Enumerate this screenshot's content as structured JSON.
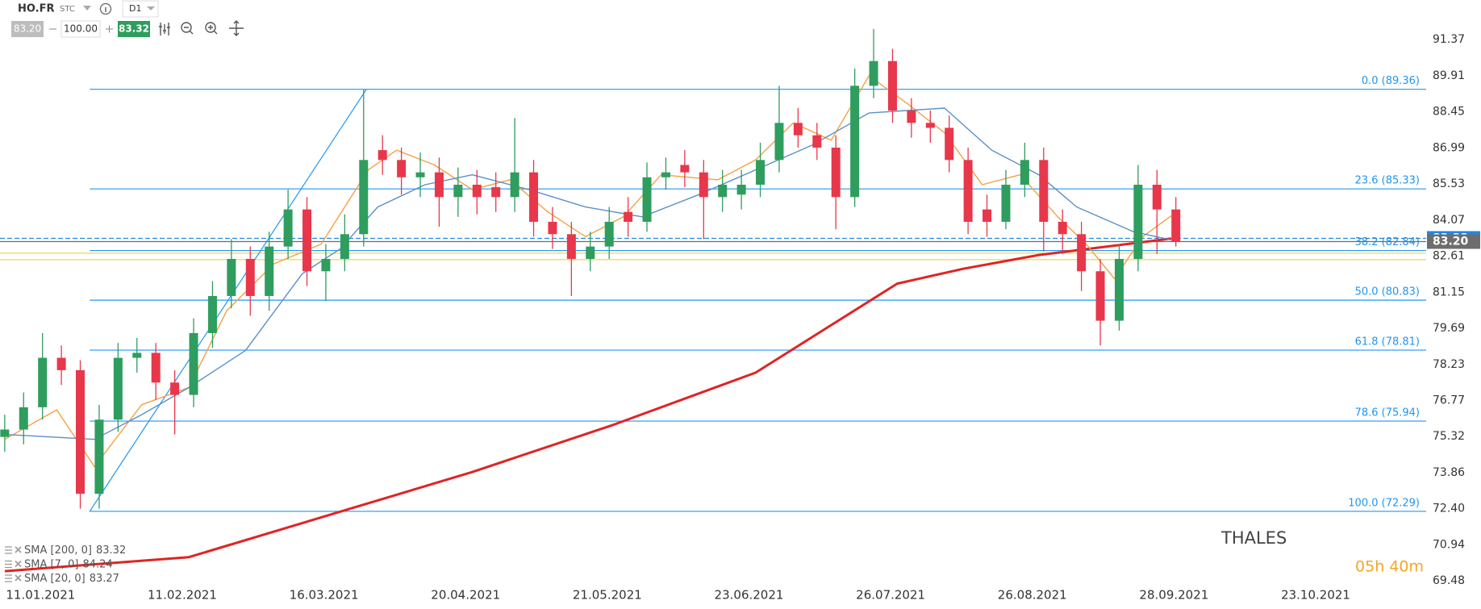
{
  "toolbar": {
    "symbol": "HO.FR",
    "market": "STC",
    "interval": "D1",
    "sell": "83.20",
    "quantity": "100.00",
    "buy": "83.32"
  },
  "chart_data": {
    "type": "candlestick",
    "title": "THALES",
    "countdown": "05h 40m",
    "xlim": [
      -0.25,
      75.25
    ],
    "ylim": [
      69.32,
      92.97
    ],
    "xticks": [
      {
        "value": 1.9,
        "label": "11.01.2021"
      },
      {
        "value": 9.4,
        "label": "11.02.2021"
      },
      {
        "value": 16.9,
        "label": "16.03.2021"
      },
      {
        "value": 24.4,
        "label": "20.04.2021"
      },
      {
        "value": 31.9,
        "label": "21.05.2021"
      },
      {
        "value": 39.4,
        "label": "23.06.2021"
      },
      {
        "value": 46.9,
        "label": "26.07.2021"
      },
      {
        "value": 54.4,
        "label": "26.08.2021"
      },
      {
        "value": 61.9,
        "label": "28.09.2021"
      },
      {
        "value": 69.4,
        "label": "23.10.2021"
      }
    ],
    "yticks": [
      91.37,
      89.91,
      88.45,
      86.99,
      85.53,
      84.07,
      82.61,
      81.15,
      79.69,
      78.23,
      76.77,
      75.32,
      73.86,
      {
        "value": 72.4,
        "label": "72.40"
      },
      70.94,
      69.48
    ],
    "up_color": "#2e9d5e",
    "down_color": "#e8374a",
    "open": [
      75.3,
      75.6,
      76.5,
      78.5,
      78,
      73,
      76,
      78.5,
      78.7,
      77.5,
      77,
      79.5,
      81,
      82.5,
      81,
      83,
      84.5,
      82,
      82.5,
      83.5,
      86.9,
      86.5,
      85.8,
      86,
      85,
      85.5,
      85.4,
      85,
      86,
      84,
      83.5,
      82.5,
      83,
      84.4,
      84,
      85.8,
      86.3,
      86,
      85,
      85.1,
      85.5,
      86.5,
      88,
      87.5,
      87,
      85,
      89.5,
      90.5,
      88.5,
      88,
      87.8,
      86.5,
      84.5,
      84,
      85.5,
      86.5,
      84,
      83.5,
      82,
      80,
      82.5,
      85.5,
      84.5
    ],
    "high": [
      76.2,
      77.1,
      79.5,
      79.0,
      78.4,
      76.6,
      79.1,
      79.3,
      79.1,
      78.0,
      80.1,
      81.6,
      83.3,
      83.0,
      83.6,
      85.3,
      85.0,
      83.1,
      84.3,
      89.36,
      87.5,
      87.0,
      86.8,
      86.6,
      86.2,
      86.1,
      86.0,
      88.2,
      86.5,
      84.6,
      84.0,
      83.6,
      84.6,
      85.0,
      86.4,
      86.6,
      86.9,
      86.5,
      86.1,
      86.1,
      87.2,
      89.5,
      88.6,
      88.0,
      87.5,
      90.2,
      91.8,
      91.0,
      89.0,
      88.5,
      88.3,
      87.0,
      85.1,
      86.1,
      87.2,
      87.0,
      84.5,
      84.0,
      82.5,
      83.1,
      86.3,
      86.1,
      85.0
    ],
    "low": [
      74.7,
      75.0,
      76.0,
      77.4,
      72.4,
      72.4,
      75.5,
      77.9,
      76.8,
      75.4,
      76.5,
      78.9,
      80.5,
      80.2,
      80.4,
      82.5,
      81.4,
      80.8,
      82.0,
      83.0,
      85.9,
      85.1,
      85.0,
      83.8,
      84.2,
      84.3,
      84.4,
      84.4,
      83.4,
      82.9,
      81.0,
      82.0,
      82.5,
      83.4,
      83.6,
      85.3,
      85.4,
      83.3,
      84.4,
      84.5,
      85.0,
      86.0,
      87.0,
      86.5,
      83.7,
      84.6,
      89.0,
      88.0,
      87.4,
      87.2,
      86.0,
      83.5,
      83.4,
      83.7,
      85.0,
      82.8,
      82.7,
      81.2,
      79.0,
      79.6,
      82.0,
      82.7,
      83.0
    ],
    "close": [
      75.6,
      76.5,
      78.5,
      78,
      73,
      76,
      78.5,
      78.7,
      77.5,
      77,
      79.5,
      81,
      82.5,
      81,
      83,
      84.5,
      82,
      82.5,
      83.5,
      86.5,
      86.5,
      85.8,
      86,
      85,
      85.5,
      85,
      85,
      86,
      84,
      83.5,
      82.5,
      83,
      84,
      84,
      85.8,
      86,
      86,
      85,
      85.5,
      85.5,
      86.5,
      88,
      87.5,
      87,
      85,
      89.5,
      90.5,
      88.5,
      88,
      87.8,
      86.5,
      84,
      84,
      85.5,
      86.5,
      84,
      83.5,
      82,
      80,
      82.5,
      85.5,
      84.5,
      83.2
    ],
    "series": [
      {
        "name": "SMA [200, 0]",
        "color": "#e02424",
        "width": 3,
        "x": [
          0,
          9.75,
          17.25,
          24.75,
          32.25,
          39.75,
          47.25,
          50.75,
          54.75,
          61.75
        ],
        "values": [
          69.87,
          70.44,
          72.16,
          73.88,
          75.8,
          77.9,
          81.5,
          82.1,
          82.66,
          83.32
        ]
      },
      {
        "name": "SMA [7, 0]",
        "color": "#f5a040",
        "width": 1.4,
        "x": [
          0,
          2.75,
          4.75,
          7.25,
          9.75,
          11.75,
          14.25,
          16.75,
          19.25,
          20.75,
          22.75,
          24.75,
          26.75,
          28.75,
          30.75,
          32.75,
          34.75,
          37.75,
          39.75,
          41.75,
          43.75,
          45.75,
          47.75,
          49.75,
          51.75,
          53.75,
          55.75,
          57.25,
          58.75,
          60.25,
          61.75
        ],
        "values": [
          75.2,
          76.4,
          74.1,
          76.6,
          77.3,
          80.4,
          82.3,
          83.1,
          86.1,
          86.9,
          86.3,
          85.3,
          85.7,
          84.4,
          83.4,
          84.2,
          85.9,
          85.7,
          86.5,
          88.0,
          87.3,
          89.9,
          88.8,
          87.6,
          85.5,
          85.9,
          84.2,
          83.1,
          81.7,
          83.4,
          84.24
        ]
      },
      {
        "name": "SMA [20, 0]",
        "color": "#5b8fc7",
        "width": 1.4,
        "x": [
          0,
          4.75,
          7.25,
          9.75,
          12.75,
          15.75,
          17.75,
          19.75,
          22.25,
          24.75,
          27.75,
          30.75,
          33.75,
          36.75,
          39.75,
          42.75,
          45.75,
          49.75,
          52.25,
          54.75,
          56.75,
          59.75,
          61.75
        ],
        "values": [
          75.4,
          75.2,
          76.2,
          77.3,
          78.8,
          81.9,
          82.9,
          84.6,
          85.5,
          85.9,
          85.3,
          84.6,
          84.2,
          85.1,
          86.1,
          87.1,
          88.4,
          88.6,
          86.9,
          85.9,
          84.6,
          83.6,
          83.27
        ]
      }
    ],
    "fib_color": "#2196f3",
    "fib_anchor": {
      "x": [
        4.5,
        19.15
      ],
      "values": [
        72.29,
        89.36
      ]
    },
    "fib_levels": [
      {
        "label": "0.0 (89.36)",
        "value": 89.36
      },
      {
        "label": "23.6 (85.33)",
        "value": 85.33
      },
      {
        "label": "38.2 (82.84)",
        "value": 82.84
      },
      {
        "label": "50.0 (80.83)",
        "value": 80.83
      },
      {
        "label": "61.8 (78.81)",
        "value": 78.81
      },
      {
        "label": "78.6 (75.94)",
        "value": 75.94
      },
      {
        "label": "100.0 (72.29)",
        "value": 72.29
      }
    ],
    "alert_lines": [
      {
        "value": 82.73,
        "color": "#f2d64b"
      },
      {
        "value": 82.47,
        "color": "#f2d64b"
      }
    ],
    "price_tags": [
      {
        "price": 83.33,
        "color": "#1e88e5",
        "dashed": true
      },
      {
        "price": {
          "value": 83.2,
          "label": "83.20"
        },
        "color": "#6d6d6d",
        "dashed": false
      }
    ]
  }
}
